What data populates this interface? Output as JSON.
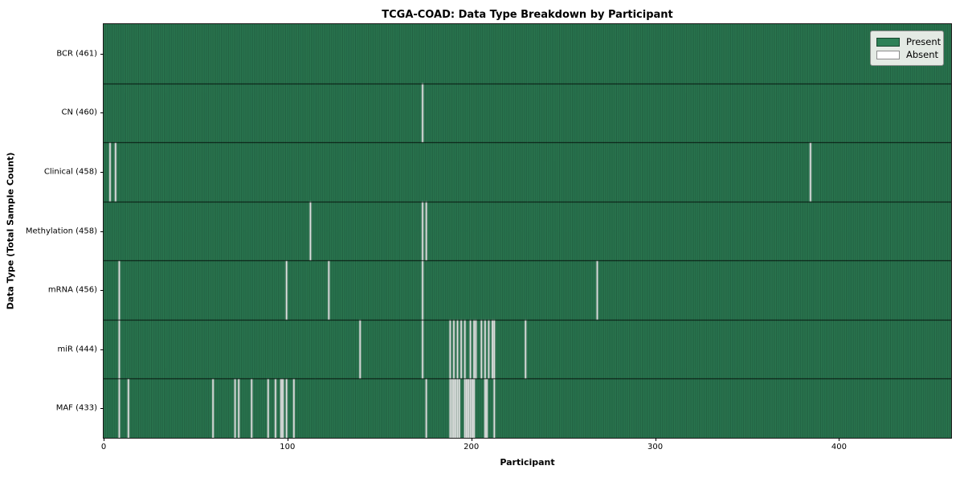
{
  "title": "TCGA-COAD: Data Type Breakdown by Participant",
  "axes": {
    "xlabel": "Participant",
    "ylabel": "Data Type (Total Sample Count)"
  },
  "legend": {
    "items": [
      {
        "label": "Present",
        "color": "#2e8157"
      },
      {
        "label": "Absent",
        "color": "#ffffff"
      }
    ]
  },
  "chart_data": {
    "type": "heatmap",
    "title": "TCGA-COAD: Data Type Breakdown by Participant",
    "xlabel": "Participant",
    "ylabel": "Data Type (Total Sample Count)",
    "n_participants": 461,
    "xlim": [
      0,
      461
    ],
    "x_ticks": [
      0,
      100,
      200,
      300,
      400
    ],
    "grid": false,
    "legend_position": "upper right",
    "colors": {
      "present": "#2e8157",
      "absent": "#ffffff",
      "bar_edge": "rgba(10,28,20,0.62)",
      "row_separator": "rgba(0,0,0,0.8)"
    },
    "rows": [
      {
        "label": "BCR (461)",
        "data_type": "BCR",
        "total_samples": 461,
        "absent_participants": []
      },
      {
        "label": "CN (460)",
        "data_type": "CN",
        "total_samples": 460,
        "absent_participants": [
          173
        ]
      },
      {
        "label": "Clinical (458)",
        "data_type": "Clinical",
        "total_samples": 458,
        "absent_participants": [
          3,
          6,
          384
        ]
      },
      {
        "label": "Methylation (458)",
        "data_type": "Methylation",
        "total_samples": 458,
        "absent_participants": [
          112,
          173,
          175
        ]
      },
      {
        "label": "mRNA (456)",
        "data_type": "mRNA",
        "total_samples": 456,
        "absent_participants": [
          8,
          99,
          122,
          173,
          268
        ]
      },
      {
        "label": "miR (444)",
        "data_type": "miR",
        "total_samples": 444,
        "absent_participants": [
          8,
          139,
          173,
          188,
          190,
          192,
          194,
          196,
          199,
          201,
          202,
          205,
          207,
          209,
          211,
          212,
          229
        ]
      },
      {
        "label": "MAF (433)",
        "data_type": "MAF",
        "total_samples": 433,
        "absent_participants": [
          8,
          13,
          59,
          71,
          73,
          80,
          89,
          93,
          96,
          97,
          99,
          103,
          175,
          188,
          189,
          190,
          191,
          192,
          193,
          196,
          197,
          198,
          199,
          200,
          201,
          207,
          208,
          212
        ]
      }
    ]
  }
}
